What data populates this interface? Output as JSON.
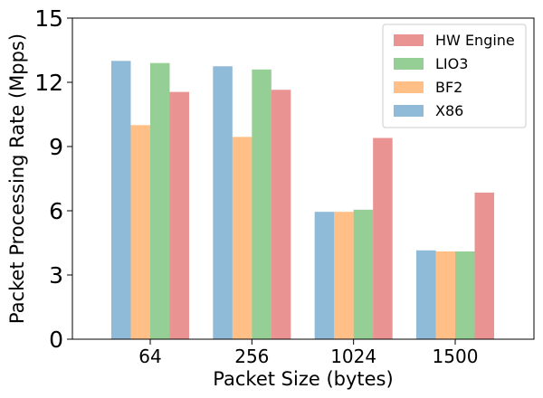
{
  "chart_data": {
    "type": "bar",
    "title": "",
    "xlabel": "Packet Size (bytes)",
    "ylabel": "Packet Processing Rate (Mpps)",
    "ylim": [
      0,
      15
    ],
    "yticks": [
      0,
      3,
      6,
      9,
      12,
      15
    ],
    "categories": [
      "64",
      "256",
      "1024",
      "1500"
    ],
    "grid": false,
    "legend_position": "top-right",
    "series": [
      {
        "name": "X86",
        "color": "#1f77b4",
        "values": [
          13.0,
          12.75,
          5.95,
          4.15
        ]
      },
      {
        "name": "BF2",
        "color": "#ff7f0e",
        "values": [
          10.0,
          9.45,
          5.95,
          4.1
        ]
      },
      {
        "name": "LIO3",
        "color": "#2ca02c",
        "values": [
          12.9,
          12.6,
          6.05,
          4.1
        ]
      },
      {
        "name": "HW Engine",
        "color": "#d62728",
        "values": [
          11.55,
          11.65,
          9.4,
          6.85
        ]
      }
    ],
    "legend_order": [
      "HW Engine",
      "LIO3",
      "BF2",
      "X86"
    ]
  }
}
